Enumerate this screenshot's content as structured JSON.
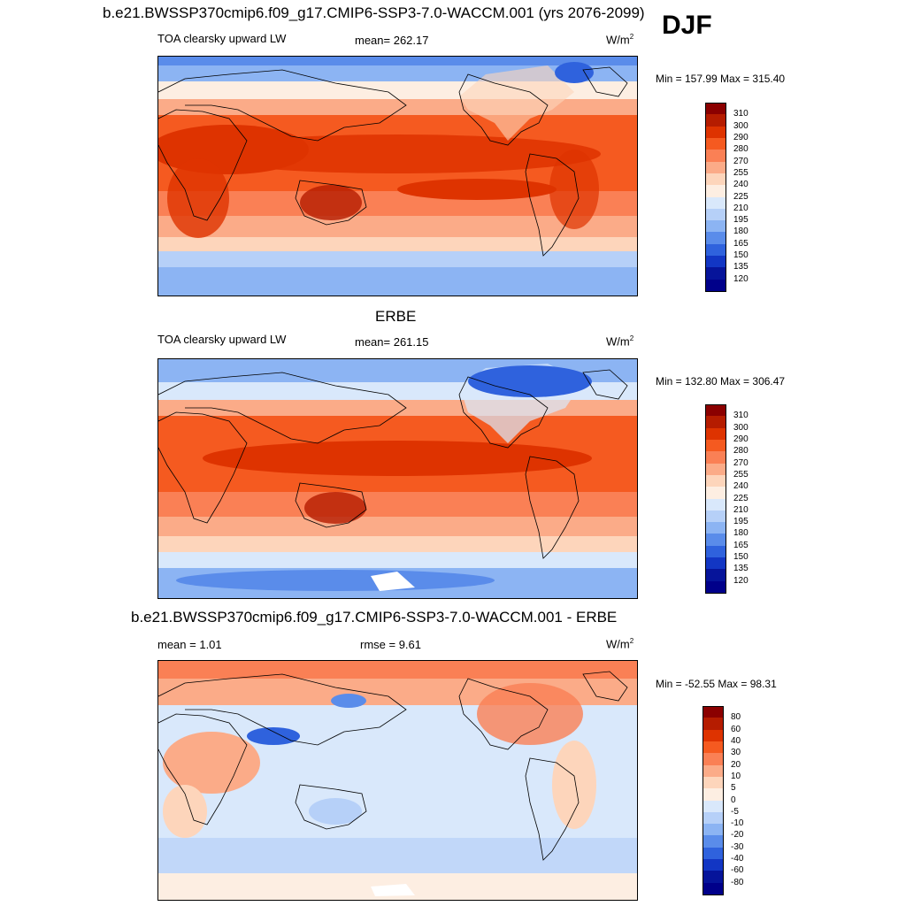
{
  "season_label": "DJF",
  "panels": [
    {
      "title": "b.e21.BWSSP370cmip6.f09_g17.CMIP6-SSP3-7.0-WACCM.001 (yrs 2076-2099)",
      "left_label": "TOA clearsky upward LW",
      "center_label": "mean= 262.17",
      "units_main": "W/m",
      "units_sup": "2",
      "minmax": "Min = 157.99 Max = 315.40",
      "palette": "abs",
      "colorbar_levels": [
        "310",
        "300",
        "290",
        "280",
        "270",
        "255",
        "240",
        "225",
        "210",
        "195",
        "180",
        "165",
        "150",
        "135",
        "120"
      ]
    },
    {
      "title": "ERBE",
      "left_label": "TOA clearsky upward LW",
      "center_label": "mean= 261.15",
      "units_main": "W/m",
      "units_sup": "2",
      "minmax": "Min = 132.80 Max = 306.47",
      "palette": "abs",
      "colorbar_levels": [
        "310",
        "300",
        "290",
        "280",
        "270",
        "255",
        "240",
        "225",
        "210",
        "195",
        "180",
        "165",
        "150",
        "135",
        "120"
      ]
    },
    {
      "title": "b.e21.BWSSP370cmip6.f09_g17.CMIP6-SSP3-7.0-WACCM.001 - ERBE",
      "left_label": "mean =   1.01",
      "center_label": "rmse =   9.61",
      "units_main": "W/m",
      "units_sup": "2",
      "minmax": "Min = -52.55 Max =  98.31",
      "palette": "diff",
      "colorbar_levels": [
        "80",
        "60",
        "40",
        "30",
        "20",
        "10",
        "5",
        "0",
        "-5",
        "-10",
        "-20",
        "-30",
        "-40",
        "-60",
        "-80"
      ]
    }
  ],
  "colors": {
    "abs": [
      "#8b0000",
      "#b51c00",
      "#de3300",
      "#f55a20",
      "#fa8055",
      "#fbab88",
      "#fdd5bb",
      "#fdeee2",
      "#d9e8fb",
      "#b6d0f8",
      "#8cb4f3",
      "#5a8cea",
      "#2f62dd",
      "#1236c4",
      "#06149a",
      "#00008a"
    ],
    "diff": [
      "#8b0000",
      "#b51c00",
      "#de3300",
      "#f55a20",
      "#fa8055",
      "#fbab88",
      "#fdd5bb",
      "#fdeee2",
      "#d9e8fb",
      "#b6d0f8",
      "#8cb4f3",
      "#5a8cea",
      "#2f62dd",
      "#1236c4",
      "#06149a",
      "#00008a"
    ]
  }
}
